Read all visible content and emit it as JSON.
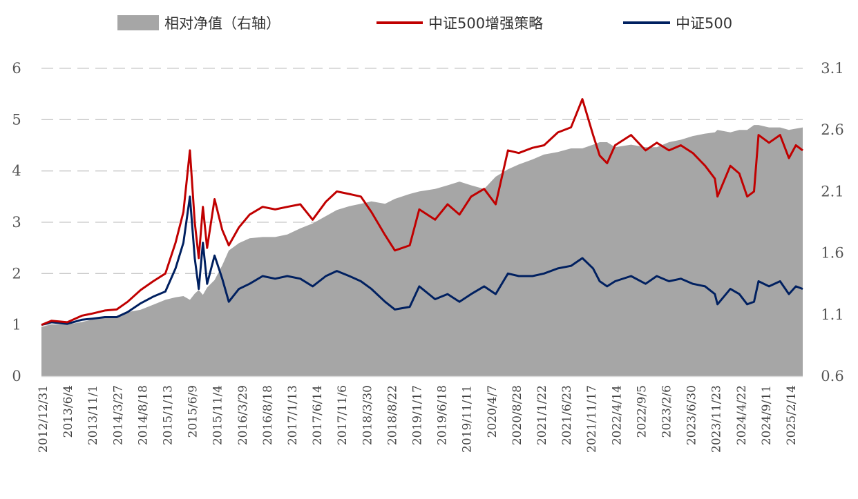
{
  "chart_data": {
    "type": "line",
    "title": "",
    "legend": {
      "placement": "top",
      "items": [
        {
          "label": "相对净值（右轴）",
          "kind": "area",
          "color": "#a6a6a6"
        },
        {
          "label": "中证500增强策略",
          "kind": "line",
          "color": "#c00000"
        },
        {
          "label": "中证500",
          "kind": "line",
          "color": "#002060"
        }
      ]
    },
    "y_left": {
      "min": 0,
      "max": 6,
      "ticks": [
        "0",
        "1",
        "2",
        "3",
        "4",
        "5",
        "6"
      ]
    },
    "y_right": {
      "min": 0.6,
      "max": 3.1,
      "ticks": [
        "0.6",
        "1.1",
        "1.6",
        "2.1",
        "2.6",
        "3.1"
      ]
    },
    "grid": {
      "horizontal": true,
      "style": "dashed"
    },
    "x_tick_labels": [
      "2012/12/31",
      "2013/6/4",
      "2013/11/1",
      "2014/3/27",
      "2014/8/18",
      "2015/1/13",
      "2015/6/9",
      "2015/11/4",
      "2016/3/29",
      "2016/8/18",
      "2017/1/13",
      "2017/6/14",
      "2017/11/6",
      "2018/3/30",
      "2018/8/22",
      "2019/1/17",
      "2019/6/18",
      "2019/11/11",
      "2020/4/7",
      "2020/8/28",
      "2021/1/22",
      "2021/6/23",
      "2021/11/17",
      "2022/4/14",
      "2022/9/5",
      "2023/2/6",
      "2023/6/30",
      "2023/11/23",
      "2024/4/22",
      "2024/9/11",
      "2025/2/14"
    ],
    "x": [
      "2012/12/31",
      "2013/3/1",
      "2013/6/4",
      "2013/9/1",
      "2013/11/1",
      "2014/1/15",
      "2014/3/27",
      "2014/6/1",
      "2014/8/18",
      "2014/11/1",
      "2015/1/13",
      "2015/3/15",
      "2015/5/1",
      "2015/6/9",
      "2015/7/8",
      "2015/8/1",
      "2015/8/26",
      "2015/9/20",
      "2015/11/4",
      "2015/12/20",
      "2016/1/28",
      "2016/3/29",
      "2016/6/1",
      "2016/8/18",
      "2016/11/1",
      "2017/1/13",
      "2017/4/1",
      "2017/6/14",
      "2017/9/1",
      "2017/11/6",
      "2018/1/20",
      "2018/3/30",
      "2018/6/1",
      "2018/8/22",
      "2018/10/20",
      "2019/1/17",
      "2019/3/15",
      "2019/6/18",
      "2019/9/1",
      "2019/11/11",
      "2020/1/20",
      "2020/4/7",
      "2020/6/15",
      "2020/8/28",
      "2020/11/1",
      "2021/1/22",
      "2021/4/1",
      "2021/6/23",
      "2021/9/10",
      "2021/11/17",
      "2022/1/20",
      "2022/3/1",
      "2022/4/14",
      "2022/6/1",
      "2022/9/5",
      "2022/12/1",
      "2023/2/6",
      "2023/4/20",
      "2023/6/30",
      "2023/9/10",
      "2023/11/23",
      "2024/1/20",
      "2024/2/5",
      "2024/4/22",
      "2024/6/15",
      "2024/8/1",
      "2024/9/11",
      "2024/10/8",
      "2024/12/10",
      "2025/2/14",
      "2025/4/8",
      "2025/5/20",
      "2025/6/30"
    ],
    "series": [
      {
        "name": "中证500增强策略",
        "axis": "left",
        "color": "#c00000",
        "values": [
          1.0,
          1.08,
          1.05,
          1.18,
          1.22,
          1.28,
          1.3,
          1.45,
          1.68,
          1.85,
          2.0,
          2.6,
          3.2,
          4.4,
          3.0,
          2.3,
          3.3,
          2.5,
          3.45,
          2.85,
          2.55,
          2.9,
          3.15,
          3.3,
          3.25,
          3.3,
          3.35,
          3.05,
          3.4,
          3.6,
          3.55,
          3.5,
          3.2,
          2.75,
          2.45,
          2.55,
          3.25,
          3.05,
          3.35,
          3.15,
          3.5,
          3.65,
          3.35,
          4.4,
          4.35,
          4.45,
          4.5,
          4.75,
          4.85,
          5.4,
          4.7,
          4.3,
          4.15,
          4.5,
          4.7,
          4.4,
          4.55,
          4.4,
          4.5,
          4.35,
          4.1,
          3.85,
          3.5,
          4.1,
          3.95,
          3.5,
          3.6,
          4.7,
          4.55,
          4.7,
          4.25,
          4.5,
          4.4
        ]
      },
      {
        "name": "中证500",
        "axis": "left",
        "color": "#002060",
        "values": [
          1.0,
          1.05,
          1.02,
          1.1,
          1.12,
          1.15,
          1.15,
          1.25,
          1.42,
          1.55,
          1.65,
          2.1,
          2.6,
          3.5,
          2.3,
          1.7,
          2.6,
          1.8,
          2.35,
          1.9,
          1.45,
          1.7,
          1.8,
          1.95,
          1.9,
          1.95,
          1.9,
          1.75,
          1.95,
          2.05,
          1.95,
          1.85,
          1.7,
          1.45,
          1.3,
          1.35,
          1.75,
          1.5,
          1.6,
          1.45,
          1.6,
          1.75,
          1.6,
          2.0,
          1.95,
          1.95,
          2.0,
          2.1,
          2.15,
          2.3,
          2.1,
          1.85,
          1.75,
          1.85,
          1.95,
          1.8,
          1.95,
          1.85,
          1.9,
          1.8,
          1.75,
          1.6,
          1.4,
          1.7,
          1.6,
          1.4,
          1.45,
          1.85,
          1.75,
          1.85,
          1.6,
          1.75,
          1.7
        ]
      },
      {
        "name": "相对净值（右轴）",
        "axis": "right",
        "color": "#a6a6a6",
        "kind": "area",
        "values": [
          1.0,
          1.02,
          1.02,
          1.04,
          1.06,
          1.08,
          1.08,
          1.12,
          1.14,
          1.18,
          1.22,
          1.24,
          1.25,
          1.22,
          1.27,
          1.3,
          1.26,
          1.32,
          1.38,
          1.5,
          1.62,
          1.68,
          1.72,
          1.73,
          1.73,
          1.75,
          1.8,
          1.84,
          1.9,
          1.95,
          1.98,
          2.0,
          2.02,
          2.0,
          2.04,
          2.08,
          2.1,
          2.12,
          2.15,
          2.18,
          2.15,
          2.12,
          2.22,
          2.28,
          2.32,
          2.36,
          2.4,
          2.42,
          2.45,
          2.45,
          2.48,
          2.5,
          2.5,
          2.46,
          2.48,
          2.46,
          2.46,
          2.5,
          2.52,
          2.55,
          2.57,
          2.58,
          2.6,
          2.58,
          2.6,
          2.6,
          2.64,
          2.64,
          2.62,
          2.62,
          2.6,
          2.61,
          2.62
        ]
      }
    ]
  }
}
